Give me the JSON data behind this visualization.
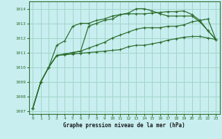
{
  "title": "Graphe pression niveau de la mer (hPa)",
  "background_color": "#c8eef0",
  "grid_color": "#a0d4c8",
  "line_color": "#2d6e2d",
  "xlim": [
    -0.5,
    23.5
  ],
  "ylim": [
    1006.8,
    1014.5
  ],
  "yticks": [
    1007,
    1008,
    1009,
    1010,
    1011,
    1012,
    1013,
    1014
  ],
  "xticks": [
    0,
    1,
    2,
    3,
    4,
    5,
    6,
    7,
    8,
    9,
    10,
    11,
    12,
    13,
    14,
    15,
    16,
    17,
    18,
    19,
    20,
    21,
    22,
    23
  ],
  "series": [
    [
      1007.2,
      1009.0,
      1010.0,
      1010.8,
      1010.9,
      1011.0,
      1011.1,
      1011.3,
      1011.5,
      1011.7,
      1012.0,
      1012.2,
      1012.4,
      1012.6,
      1012.7,
      1012.7,
      1012.7,
      1012.8,
      1012.8,
      1012.9,
      1013.1,
      1013.2,
      1013.3,
      1011.9
    ],
    [
      1007.2,
      1009.0,
      1010.0,
      1010.8,
      1010.9,
      1011.0,
      1011.1,
      1012.8,
      1013.0,
      1013.2,
      1013.3,
      1013.6,
      1013.7,
      1014.0,
      1014.0,
      1013.85,
      1013.65,
      1013.5,
      1013.5,
      1013.5,
      1013.5,
      1013.1,
      1012.5,
      1011.9
    ],
    [
      1007.2,
      1009.0,
      1010.0,
      1010.8,
      1010.85,
      1010.9,
      1010.95,
      1011.0,
      1011.05,
      1011.1,
      1011.15,
      1011.2,
      1011.4,
      1011.5,
      1011.5,
      1011.6,
      1011.7,
      1011.85,
      1011.95,
      1012.05,
      1012.1,
      1012.1,
      1012.0,
      1011.9
    ],
    [
      1007.2,
      1009.0,
      1010.0,
      1011.5,
      1011.8,
      1012.8,
      1013.0,
      1013.0,
      1013.2,
      1013.3,
      1013.5,
      1013.6,
      1013.65,
      1013.65,
      1013.65,
      1013.7,
      1013.75,
      1013.8,
      1013.8,
      1013.85,
      1013.6,
      1013.2,
      1012.5,
      1011.9
    ]
  ]
}
